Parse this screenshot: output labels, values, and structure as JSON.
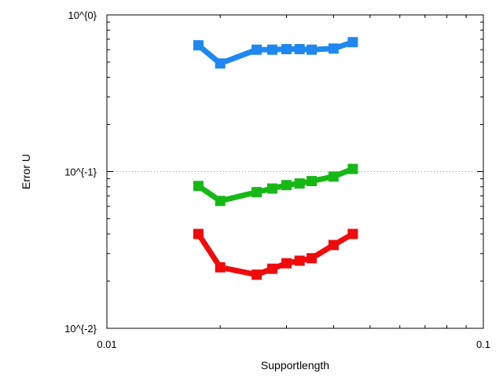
{
  "chart_data": {
    "type": "line",
    "title": "",
    "xlabel": "Supportlength",
    "ylabel": "Error U",
    "xscale": "log",
    "yscale": "log",
    "xlim": [
      0.01,
      0.1
    ],
    "ylim": [
      0.01,
      1
    ],
    "x_ticks": [
      {
        "value": 0.01,
        "label": "0.01"
      },
      {
        "value": 0.1,
        "label": "0.1"
      }
    ],
    "y_ticks": [
      {
        "value": 1,
        "label": "10^{0}"
      },
      {
        "value": 0.1,
        "label": "10^{-1}"
      },
      {
        "value": 0.01,
        "label": "10^{-2}"
      }
    ],
    "grid": "dotted at major y ticks",
    "legend": "none",
    "x": [
      0.0175,
      0.02,
      0.025,
      0.0275,
      0.03,
      0.0325,
      0.035,
      0.04,
      0.045
    ],
    "series": [
      {
        "color": "#1E88F0",
        "values": [
          0.64,
          0.49,
          0.6,
          0.6,
          0.605,
          0.605,
          0.6,
          0.61,
          0.67
        ]
      },
      {
        "color": "#16B816",
        "values": [
          0.081,
          0.065,
          0.074,
          0.078,
          0.082,
          0.084,
          0.087,
          0.093,
          0.104
        ]
      },
      {
        "color": "#F00A0A",
        "values": [
          0.04,
          0.0245,
          0.022,
          0.024,
          0.026,
          0.027,
          0.028,
          0.034,
          0.04
        ]
      }
    ]
  }
}
